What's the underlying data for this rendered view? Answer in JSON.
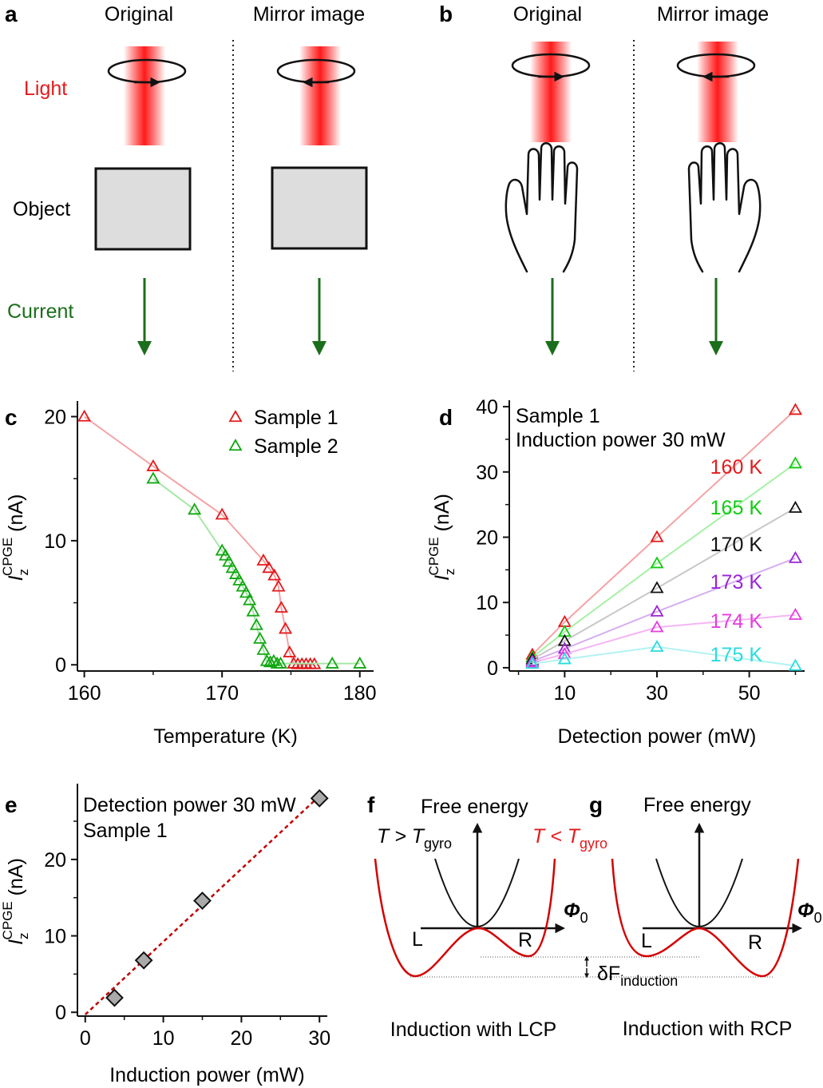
{
  "colors": {
    "red": "#e41a1c",
    "green": "#11a811",
    "dark_green": "#1b6e1b",
    "black": "#111111",
    "purple": "#9a24d6",
    "magenta": "#e43ee0",
    "cyan": "#28dcde",
    "gray_fill": "#d8d8d8"
  },
  "panel_a": {
    "letter": "a",
    "col_original": "Original",
    "col_mirror": "Mirror image",
    "row_light": "Light",
    "row_object": "Object",
    "row_current": "Current"
  },
  "panel_b": {
    "letter": "b",
    "col_original": "Original",
    "col_mirror": "Mirror image"
  },
  "panel_c": {
    "letter": "c"
  },
  "panel_d": {
    "letter": "d"
  },
  "panel_e": {
    "letter": "e"
  },
  "panel_f": {
    "letter": "f",
    "ylabel": "Free energy",
    "label_high_T": "T > T",
    "label_high_T_sub": "gyro",
    "label_low_T": "T < T",
    "label_low_T_sub": "gyro",
    "phi": "Φ",
    "phi_sub": "0",
    "left_well": "L",
    "right_well": "R",
    "caption": "Induction with LCP",
    "delta_label": "δF",
    "delta_sub": "induction"
  },
  "panel_g": {
    "letter": "g",
    "ylabel": "Free energy",
    "phi": "Φ",
    "phi_sub": "0",
    "left_well": "L",
    "right_well": "R",
    "caption": "Induction with RCP"
  },
  "chart_data": [
    {
      "panel": "c",
      "type": "line",
      "xlabel": "Temperature (K)",
      "ylabel_main": "I",
      "ylabel_sub": "z",
      "ylabel_sup": "CPGE",
      "ylabel_unit": " (nA)",
      "xlim": [
        159.5,
        181
      ],
      "ylim": [
        -0.5,
        21
      ],
      "xticks": [
        160,
        170,
        180
      ],
      "yticks": [
        0,
        10,
        20
      ],
      "legend_position": "top-right",
      "series": [
        {
          "name": "Sample 1",
          "color": "#e41a1c",
          "x": [
            160,
            165,
            170,
            173,
            173.4,
            173.8,
            174.1,
            174.3,
            174.6,
            174.9,
            175.2,
            175.5,
            175.8,
            176.1,
            176.4,
            176.7
          ],
          "y": [
            20,
            16,
            12.1,
            8.4,
            7.8,
            7.2,
            6.3,
            4.6,
            2.9,
            1.0,
            0.1,
            0.05,
            0.05,
            0.05,
            0.05,
            0.05
          ]
        },
        {
          "name": "Sample 2",
          "color": "#11a811",
          "x": [
            165,
            168,
            170,
            170.25,
            170.5,
            170.75,
            171,
            171.25,
            171.5,
            171.75,
            172,
            172.25,
            172.5,
            172.75,
            173,
            173.25,
            173.5,
            173.75,
            174,
            174.25,
            178,
            180
          ],
          "y": [
            15,
            12.5,
            9.2,
            8.8,
            8.3,
            7.8,
            7.3,
            6.8,
            6.3,
            5.8,
            5.2,
            4.3,
            3.2,
            2.1,
            1.2,
            0.3,
            0.2,
            0.3,
            0.1,
            0.1,
            0.1,
            0.1
          ]
        }
      ]
    },
    {
      "panel": "d",
      "type": "line",
      "xlabel": "Detection power (mW)",
      "ylabel_main": "I",
      "ylabel_sub": "z",
      "ylabel_sup": "CPGE",
      "ylabel_unit": " (nA)",
      "annotation_1": "Sample 1",
      "annotation_2": "Induction power 30 mW",
      "xlim": [
        -2,
        62
      ],
      "ylim": [
        -0.5,
        40.5
      ],
      "xticks": [
        10,
        30,
        50
      ],
      "yticks": [
        0,
        10,
        20,
        30,
        40
      ],
      "series": [
        {
          "name": "160 K",
          "color": "#e41a1c",
          "x": [
            3,
            10,
            30,
            60
          ],
          "y": [
            2,
            7,
            20,
            39.5
          ]
        },
        {
          "name": "165 K",
          "color": "#11cc11",
          "x": [
            3,
            10,
            30,
            60
          ],
          "y": [
            1.6,
            5.5,
            16,
            31.3
          ]
        },
        {
          "name": "170 K",
          "color": "#111111",
          "x": [
            3,
            10,
            30,
            60
          ],
          "y": [
            1.3,
            4.1,
            12.2,
            24.5
          ]
        },
        {
          "name": "173 K",
          "color": "#9a24d6",
          "x": [
            3,
            10,
            30,
            60
          ],
          "y": [
            1.0,
            2.9,
            8.6,
            16.8
          ]
        },
        {
          "name": "174 K",
          "color": "#e43ee0",
          "x": [
            3,
            10,
            30,
            60
          ],
          "y": [
            0.8,
            2.1,
            6.2,
            8.1
          ]
        },
        {
          "name": "175 K",
          "color": "#28dcde",
          "x": [
            3,
            10,
            30,
            60
          ],
          "y": [
            0.6,
            1.3,
            3.2,
            0.3
          ]
        }
      ]
    },
    {
      "panel": "e",
      "type": "scatter",
      "xlabel": "Induction power (mW)",
      "ylabel_main": "I",
      "ylabel_sub": "z",
      "ylabel_sup": "CPGE",
      "ylabel_unit": " (nA)",
      "annotation_1": "Detection power 30 mW",
      "annotation_2": "Sample 1",
      "xlim": [
        -1,
        31
      ],
      "ylim": [
        -0.5,
        29.5
      ],
      "xticks": [
        0,
        10,
        20,
        30
      ],
      "yticks": [
        0,
        10,
        20
      ],
      "series": [
        {
          "color": "#aaaaaa",
          "x": [
            3.75,
            7.5,
            15,
            30
          ],
          "y": [
            1.9,
            6.8,
            14.6,
            28
          ]
        }
      ],
      "fit_line": {
        "x": [
          0,
          30
        ],
        "y": [
          -0.3,
          28.3
        ],
        "color": "#c00000",
        "style": "dashed"
      }
    }
  ]
}
